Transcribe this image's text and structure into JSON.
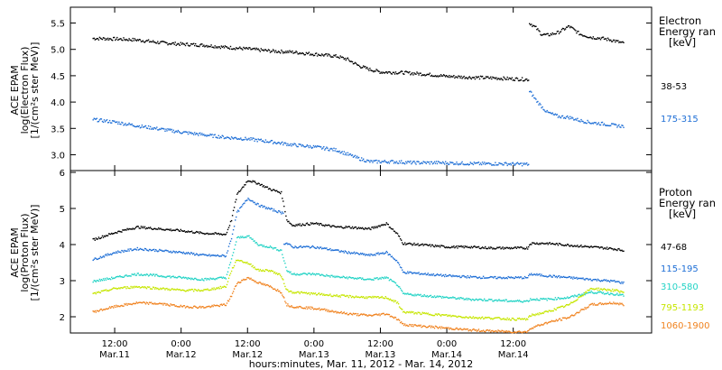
{
  "chart_data": [
    {
      "type": "scatter",
      "panel": "electrons",
      "ylabel": [
        "ACE EPAM",
        "log(Electron Flux)",
        "[1/(cm²s ster MeV)]"
      ],
      "ylim": [
        2.7,
        5.8
      ],
      "yticks": [
        "3.0",
        "3.5",
        "4.0",
        "4.5",
        "5.0",
        "5.5"
      ],
      "ytick_values": [
        3.0,
        3.5,
        4.0,
        4.5,
        5.0,
        5.5
      ],
      "legend_title": [
        "Electron",
        "Energy ran",
        "[keV]"
      ],
      "series": [
        {
          "name": "38-53",
          "color": "#000000",
          "points": [
            [
              2,
              5.22
            ],
            [
              6,
              5.21
            ],
            [
              10,
              5.19
            ],
            [
              14,
              5.14
            ],
            [
              18,
              5.11
            ],
            [
              22,
              5.09
            ],
            [
              26,
              5.05
            ],
            [
              30,
              5.02
            ],
            [
              34,
              4.98
            ],
            [
              38,
              4.96
            ],
            [
              42,
              4.92
            ],
            [
              46,
              4.88
            ],
            [
              48,
              4.82
            ],
            [
              50,
              4.7
            ],
            [
              52,
              4.63
            ],
            [
              54,
              4.58
            ],
            [
              58,
              4.57
            ],
            [
              62,
              4.54
            ],
            [
              66,
              4.5
            ],
            [
              70,
              4.48
            ],
            [
              74,
              4.47
            ],
            [
              78,
              4.45
            ],
            [
              80.5,
              4.44
            ],
            [
              81,
              5.5
            ],
            [
              82,
              5.42
            ],
            [
              83,
              5.3
            ],
            [
              84,
              5.28
            ],
            [
              86,
              5.33
            ],
            [
              88,
              5.45
            ],
            [
              90,
              5.3
            ],
            [
              92,
              5.24
            ],
            [
              94,
              5.22
            ],
            [
              96,
              5.18
            ],
            [
              98,
              5.12
            ]
          ]
        },
        {
          "name": "175-315",
          "color": "#1f6fd6",
          "points": [
            [
              2,
              3.68
            ],
            [
              6,
              3.63
            ],
            [
              10,
              3.56
            ],
            [
              14,
              3.5
            ],
            [
              18,
              3.44
            ],
            [
              22,
              3.39
            ],
            [
              26,
              3.34
            ],
            [
              30,
              3.31
            ],
            [
              34,
              3.26
            ],
            [
              38,
              3.2
            ],
            [
              42,
              3.16
            ],
            [
              46,
              3.1
            ],
            [
              48,
              3.02
            ],
            [
              50,
              2.94
            ],
            [
              52,
              2.88
            ],
            [
              56,
              2.88
            ],
            [
              60,
              2.86
            ],
            [
              64,
              2.86
            ],
            [
              68,
              2.85
            ],
            [
              72,
              2.84
            ],
            [
              76,
              2.84
            ],
            [
              80.5,
              2.83
            ],
            [
              81,
              4.2
            ],
            [
              82,
              4.05
            ],
            [
              83,
              3.93
            ],
            [
              84,
              3.82
            ],
            [
              86,
              3.74
            ],
            [
              88,
              3.72
            ],
            [
              90,
              3.66
            ],
            [
              92,
              3.62
            ],
            [
              94,
              3.6
            ],
            [
              96,
              3.57
            ],
            [
              98,
              3.55
            ]
          ]
        }
      ]
    },
    {
      "type": "scatter",
      "panel": "protons",
      "ylabel": [
        "ACE EPAM",
        "log(Proton Flux)",
        "[1/(cm²s ster MeV)]"
      ],
      "ylim": [
        1.55,
        6.05
      ],
      "yticks": [
        "2",
        "3",
        "4",
        "5",
        "6"
      ],
      "ytick_values": [
        2,
        3,
        4,
        5,
        6
      ],
      "legend_title": [
        "Proton",
        "Energy ran",
        "[keV]"
      ],
      "series": [
        {
          "name": "47-68",
          "color": "#000000",
          "points": [
            [
              2,
              4.15
            ],
            [
              6,
              4.35
            ],
            [
              10,
              4.5
            ],
            [
              14,
              4.45
            ],
            [
              18,
              4.4
            ],
            [
              22,
              4.33
            ],
            [
              26,
              4.3
            ],
            [
              27,
              4.7
            ],
            [
              28,
              5.4
            ],
            [
              30,
              5.8
            ],
            [
              32,
              5.7
            ],
            [
              34,
              5.55
            ],
            [
              36,
              5.45
            ],
            [
              37,
              4.7
            ],
            [
              38,
              4.55
            ],
            [
              42,
              4.6
            ],
            [
              46,
              4.5
            ],
            [
              48,
              4.5
            ],
            [
              52,
              4.45
            ],
            [
              55,
              4.6
            ],
            [
              57,
              4.3
            ],
            [
              58,
              4.05
            ],
            [
              62,
              4.0
            ],
            [
              66,
              3.95
            ],
            [
              70,
              3.95
            ],
            [
              74,
              3.92
            ],
            [
              78,
              3.92
            ],
            [
              80.5,
              3.92
            ],
            [
              81,
              4.05
            ],
            [
              84,
              4.05
            ],
            [
              88,
              4.0
            ],
            [
              92,
              3.95
            ],
            [
              96,
              3.9
            ],
            [
              98,
              3.85
            ]
          ]
        },
        {
          "name": "115-195",
          "color": "#1f6fd6",
          "points": [
            [
              2,
              3.6
            ],
            [
              6,
              3.8
            ],
            [
              10,
              3.9
            ],
            [
              14,
              3.85
            ],
            [
              18,
              3.8
            ],
            [
              22,
              3.72
            ],
            [
              26,
              3.7
            ],
            [
              27,
              4.2
            ],
            [
              28,
              4.9
            ],
            [
              30,
              5.3
            ],
            [
              32,
              5.1
            ],
            [
              34,
              5.0
            ],
            [
              36,
              4.9
            ],
            [
              37,
              4.05
            ],
            [
              38,
              3.95
            ],
            [
              42,
              3.95
            ],
            [
              46,
              3.85
            ],
            [
              48,
              3.8
            ],
            [
              52,
              3.72
            ],
            [
              55,
              3.8
            ],
            [
              57,
              3.55
            ],
            [
              58,
              3.25
            ],
            [
              62,
              3.2
            ],
            [
              66,
              3.15
            ],
            [
              70,
              3.12
            ],
            [
              74,
              3.1
            ],
            [
              78,
              3.1
            ],
            [
              80.5,
              3.1
            ],
            [
              81,
              3.2
            ],
            [
              84,
              3.15
            ],
            [
              88,
              3.1
            ],
            [
              92,
              3.05
            ],
            [
              96,
              3.0
            ],
            [
              98,
              2.95
            ]
          ]
        },
        {
          "name": "310-580",
          "color": "#22d3c5",
          "points": [
            [
              2,
              3.0
            ],
            [
              6,
              3.1
            ],
            [
              10,
              3.2
            ],
            [
              14,
              3.15
            ],
            [
              18,
              3.1
            ],
            [
              22,
              3.05
            ],
            [
              26,
              3.1
            ],
            [
              27,
              3.6
            ],
            [
              28,
              4.2
            ],
            [
              30,
              4.25
            ],
            [
              32,
              4.0
            ],
            [
              34,
              3.95
            ],
            [
              36,
              3.85
            ],
            [
              37,
              3.3
            ],
            [
              38,
              3.2
            ],
            [
              42,
              3.2
            ],
            [
              46,
              3.12
            ],
            [
              48,
              3.1
            ],
            [
              52,
              3.05
            ],
            [
              55,
              3.1
            ],
            [
              57,
              2.9
            ],
            [
              58,
              2.65
            ],
            [
              62,
              2.6
            ],
            [
              66,
              2.55
            ],
            [
              70,
              2.5
            ],
            [
              74,
              2.48
            ],
            [
              78,
              2.45
            ],
            [
              80.5,
              2.45
            ],
            [
              81,
              2.5
            ],
            [
              84,
              2.5
            ],
            [
              88,
              2.55
            ],
            [
              92,
              2.7
            ],
            [
              96,
              2.65
            ],
            [
              98,
              2.6
            ]
          ]
        },
        {
          "name": "795-1193",
          "color": "#c6e600",
          "points": [
            [
              2,
              2.65
            ],
            [
              6,
              2.8
            ],
            [
              10,
              2.85
            ],
            [
              14,
              2.8
            ],
            [
              18,
              2.75
            ],
            [
              22,
              2.75
            ],
            [
              26,
              2.85
            ],
            [
              27,
              3.3
            ],
            [
              28,
              3.6
            ],
            [
              30,
              3.5
            ],
            [
              32,
              3.3
            ],
            [
              34,
              3.3
            ],
            [
              36,
              3.15
            ],
            [
              37,
              2.75
            ],
            [
              38,
              2.7
            ],
            [
              42,
              2.65
            ],
            [
              46,
              2.6
            ],
            [
              48,
              2.58
            ],
            [
              52,
              2.55
            ],
            [
              55,
              2.55
            ],
            [
              57,
              2.4
            ],
            [
              58,
              2.15
            ],
            [
              62,
              2.1
            ],
            [
              66,
              2.05
            ],
            [
              70,
              2.0
            ],
            [
              74,
              1.98
            ],
            [
              78,
              1.95
            ],
            [
              80.5,
              1.95
            ],
            [
              81,
              2.05
            ],
            [
              84,
              2.15
            ],
            [
              88,
              2.35
            ],
            [
              92,
              2.8
            ],
            [
              96,
              2.75
            ],
            [
              98,
              2.7
            ]
          ]
        },
        {
          "name": "1060-1900",
          "color": "#f0821e",
          "points": [
            [
              2,
              2.15
            ],
            [
              6,
              2.3
            ],
            [
              10,
              2.4
            ],
            [
              14,
              2.38
            ],
            [
              18,
              2.3
            ],
            [
              22,
              2.28
            ],
            [
              26,
              2.35
            ],
            [
              27,
              2.6
            ],
            [
              28,
              2.95
            ],
            [
              30,
              3.1
            ],
            [
              32,
              2.95
            ],
            [
              34,
              2.85
            ],
            [
              36,
              2.7
            ],
            [
              37,
              2.35
            ],
            [
              38,
              2.3
            ],
            [
              42,
              2.25
            ],
            [
              46,
              2.15
            ],
            [
              48,
              2.1
            ],
            [
              52,
              2.05
            ],
            [
              55,
              2.1
            ],
            [
              57,
              1.95
            ],
            [
              58,
              1.8
            ],
            [
              62,
              1.75
            ],
            [
              66,
              1.7
            ],
            [
              70,
              1.65
            ],
            [
              74,
              1.62
            ],
            [
              78,
              1.6
            ],
            [
              80.5,
              1.6
            ],
            [
              81,
              1.7
            ],
            [
              84,
              1.85
            ],
            [
              88,
              2.0
            ],
            [
              92,
              2.35
            ],
            [
              96,
              2.4
            ],
            [
              98,
              2.35
            ]
          ]
        }
      ]
    }
  ],
  "xaxis": {
    "xlabel": "hours:minutes, Mar. 11, 2012 - Mar. 14, 2012",
    "xlim": [
      -2,
      103
    ],
    "ticks": [
      {
        "x": 6,
        "time": "12:00",
        "date": "Mar.11"
      },
      {
        "x": 18,
        "time": "0:00",
        "date": "Mar.12"
      },
      {
        "x": 30,
        "time": "12:00",
        "date": "Mar.12"
      },
      {
        "x": 42,
        "time": "0:00",
        "date": "Mar.13"
      },
      {
        "x": 54,
        "time": "12:00",
        "date": "Mar.13"
      },
      {
        "x": 66,
        "time": "0:00",
        "date": "Mar.14"
      },
      {
        "x": 78,
        "time": "12:00",
        "date": "Mar.14"
      }
    ]
  }
}
